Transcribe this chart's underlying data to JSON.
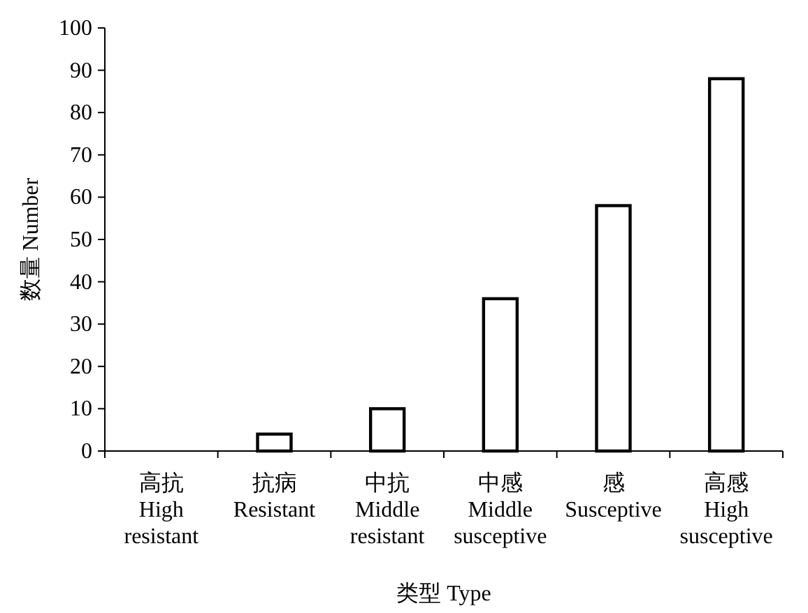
{
  "chart_data": {
    "type": "bar",
    "xlabel": "类型 Type",
    "ylabel": "数量 Number",
    "categories": [
      "高抗\nHigh\nresistant",
      "抗病\nResistant",
      "中抗\nMiddle\nresistant",
      "中感\nMiddle\nsusceptive",
      "感\nSusceptive",
      "高感\nHigh\nsusceptive"
    ],
    "values": [
      0,
      4,
      10,
      36,
      58,
      88
    ],
    "color": "#ffffff",
    "ylim": [
      0,
      100
    ],
    "yticks": [
      0,
      10,
      20,
      30,
      40,
      50,
      60,
      70,
      80,
      90,
      100
    ],
    "grid": false
  }
}
